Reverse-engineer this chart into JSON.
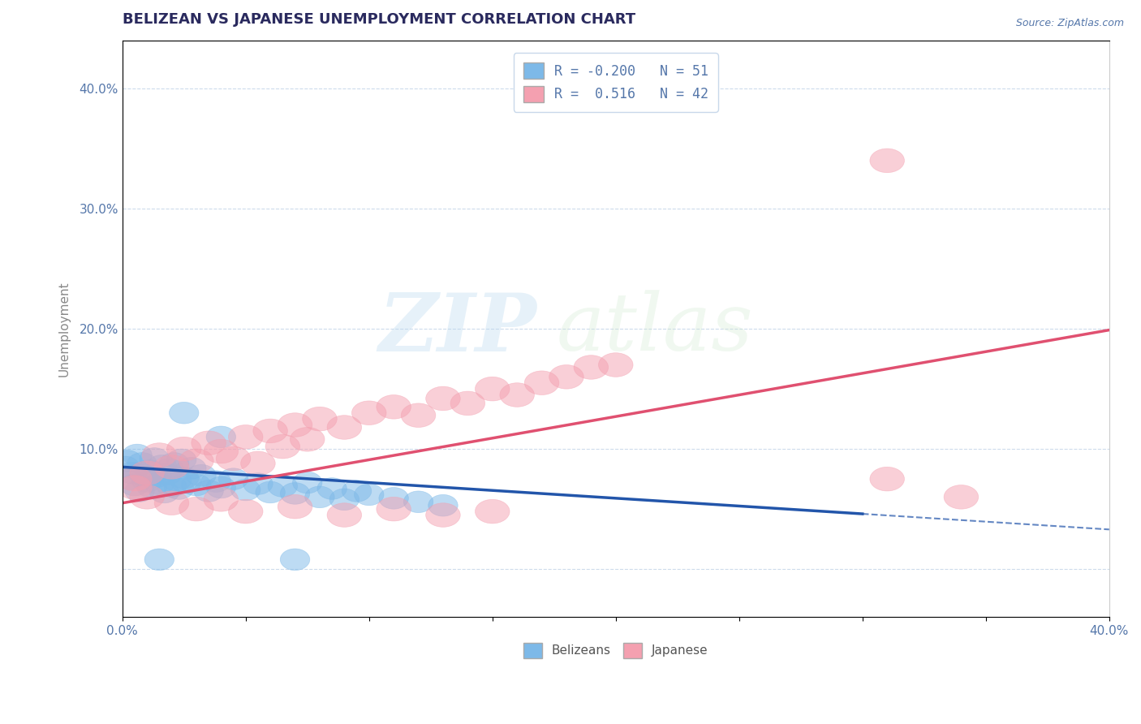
{
  "title": "BELIZEAN VS JAPANESE UNEMPLOYMENT CORRELATION CHART",
  "source_text": "Source: ZipAtlas.com",
  "ylabel": "Unemployment",
  "xlabel": "",
  "xlim": [
    0.0,
    0.4
  ],
  "ylim": [
    -0.04,
    0.44
  ],
  "blue_color": "#7db9e8",
  "pink_color": "#f4a0b0",
  "blue_line_color": "#2255aa",
  "pink_line_color": "#e05070",
  "title_color": "#2a2a5e",
  "axis_color": "#5577aa",
  "grid_color": "#c8d8ea",
  "background_color": "#ffffff",
  "title_fontsize": 13,
  "label_fontsize": 11,
  "watermark_zip": "ZIP",
  "watermark_atlas": "atlas",
  "blue_points": [
    [
      0.001,
      0.085
    ],
    [
      0.002,
      0.09
    ],
    [
      0.003,
      0.075
    ],
    [
      0.004,
      0.08
    ],
    [
      0.005,
      0.07
    ],
    [
      0.006,
      0.095
    ],
    [
      0.007,
      0.065
    ],
    [
      0.008,
      0.088
    ],
    [
      0.009,
      0.078
    ],
    [
      0.01,
      0.073
    ],
    [
      0.011,
      0.082
    ],
    [
      0.012,
      0.068
    ],
    [
      0.013,
      0.092
    ],
    [
      0.014,
      0.077
    ],
    [
      0.015,
      0.071
    ],
    [
      0.016,
      0.086
    ],
    [
      0.017,
      0.064
    ],
    [
      0.018,
      0.079
    ],
    [
      0.019,
      0.083
    ],
    [
      0.02,
      0.069
    ],
    [
      0.021,
      0.088
    ],
    [
      0.022,
      0.074
    ],
    [
      0.023,
      0.067
    ],
    [
      0.024,
      0.091
    ],
    [
      0.025,
      0.076
    ],
    [
      0.026,
      0.072
    ],
    [
      0.028,
      0.084
    ],
    [
      0.03,
      0.07
    ],
    [
      0.032,
      0.078
    ],
    [
      0.035,
      0.065
    ],
    [
      0.038,
      0.073
    ],
    [
      0.04,
      0.068
    ],
    [
      0.045,
      0.075
    ],
    [
      0.05,
      0.066
    ],
    [
      0.055,
      0.071
    ],
    [
      0.06,
      0.064
    ],
    [
      0.065,
      0.069
    ],
    [
      0.07,
      0.063
    ],
    [
      0.075,
      0.072
    ],
    [
      0.08,
      0.06
    ],
    [
      0.085,
      0.067
    ],
    [
      0.09,
      0.058
    ],
    [
      0.095,
      0.065
    ],
    [
      0.1,
      0.062
    ],
    [
      0.11,
      0.059
    ],
    [
      0.12,
      0.056
    ],
    [
      0.13,
      0.053
    ],
    [
      0.025,
      0.13
    ],
    [
      0.04,
      0.11
    ],
    [
      0.015,
      0.008
    ],
    [
      0.07,
      0.008
    ]
  ],
  "pink_points": [
    [
      0.005,
      0.075
    ],
    [
      0.01,
      0.08
    ],
    [
      0.015,
      0.095
    ],
    [
      0.02,
      0.085
    ],
    [
      0.025,
      0.1
    ],
    [
      0.03,
      0.09
    ],
    [
      0.035,
      0.105
    ],
    [
      0.04,
      0.098
    ],
    [
      0.045,
      0.092
    ],
    [
      0.05,
      0.11
    ],
    [
      0.055,
      0.088
    ],
    [
      0.06,
      0.115
    ],
    [
      0.065,
      0.102
    ],
    [
      0.07,
      0.12
    ],
    [
      0.075,
      0.108
    ],
    [
      0.08,
      0.125
    ],
    [
      0.09,
      0.118
    ],
    [
      0.1,
      0.13
    ],
    [
      0.11,
      0.135
    ],
    [
      0.12,
      0.128
    ],
    [
      0.13,
      0.142
    ],
    [
      0.14,
      0.138
    ],
    [
      0.15,
      0.15
    ],
    [
      0.16,
      0.145
    ],
    [
      0.17,
      0.155
    ],
    [
      0.18,
      0.16
    ],
    [
      0.19,
      0.168
    ],
    [
      0.005,
      0.068
    ],
    [
      0.01,
      0.06
    ],
    [
      0.02,
      0.055
    ],
    [
      0.03,
      0.05
    ],
    [
      0.04,
      0.058
    ],
    [
      0.05,
      0.048
    ],
    [
      0.07,
      0.052
    ],
    [
      0.09,
      0.045
    ],
    [
      0.11,
      0.05
    ],
    [
      0.13,
      0.045
    ],
    [
      0.15,
      0.048
    ],
    [
      0.31,
      0.075
    ],
    [
      0.34,
      0.06
    ],
    [
      0.31,
      0.34
    ],
    [
      0.2,
      0.17
    ]
  ],
  "legend_R1": "R = -0.200",
  "legend_N1": "N = 51",
  "legend_R2": "R =  0.516",
  "legend_N2": "N = 42"
}
